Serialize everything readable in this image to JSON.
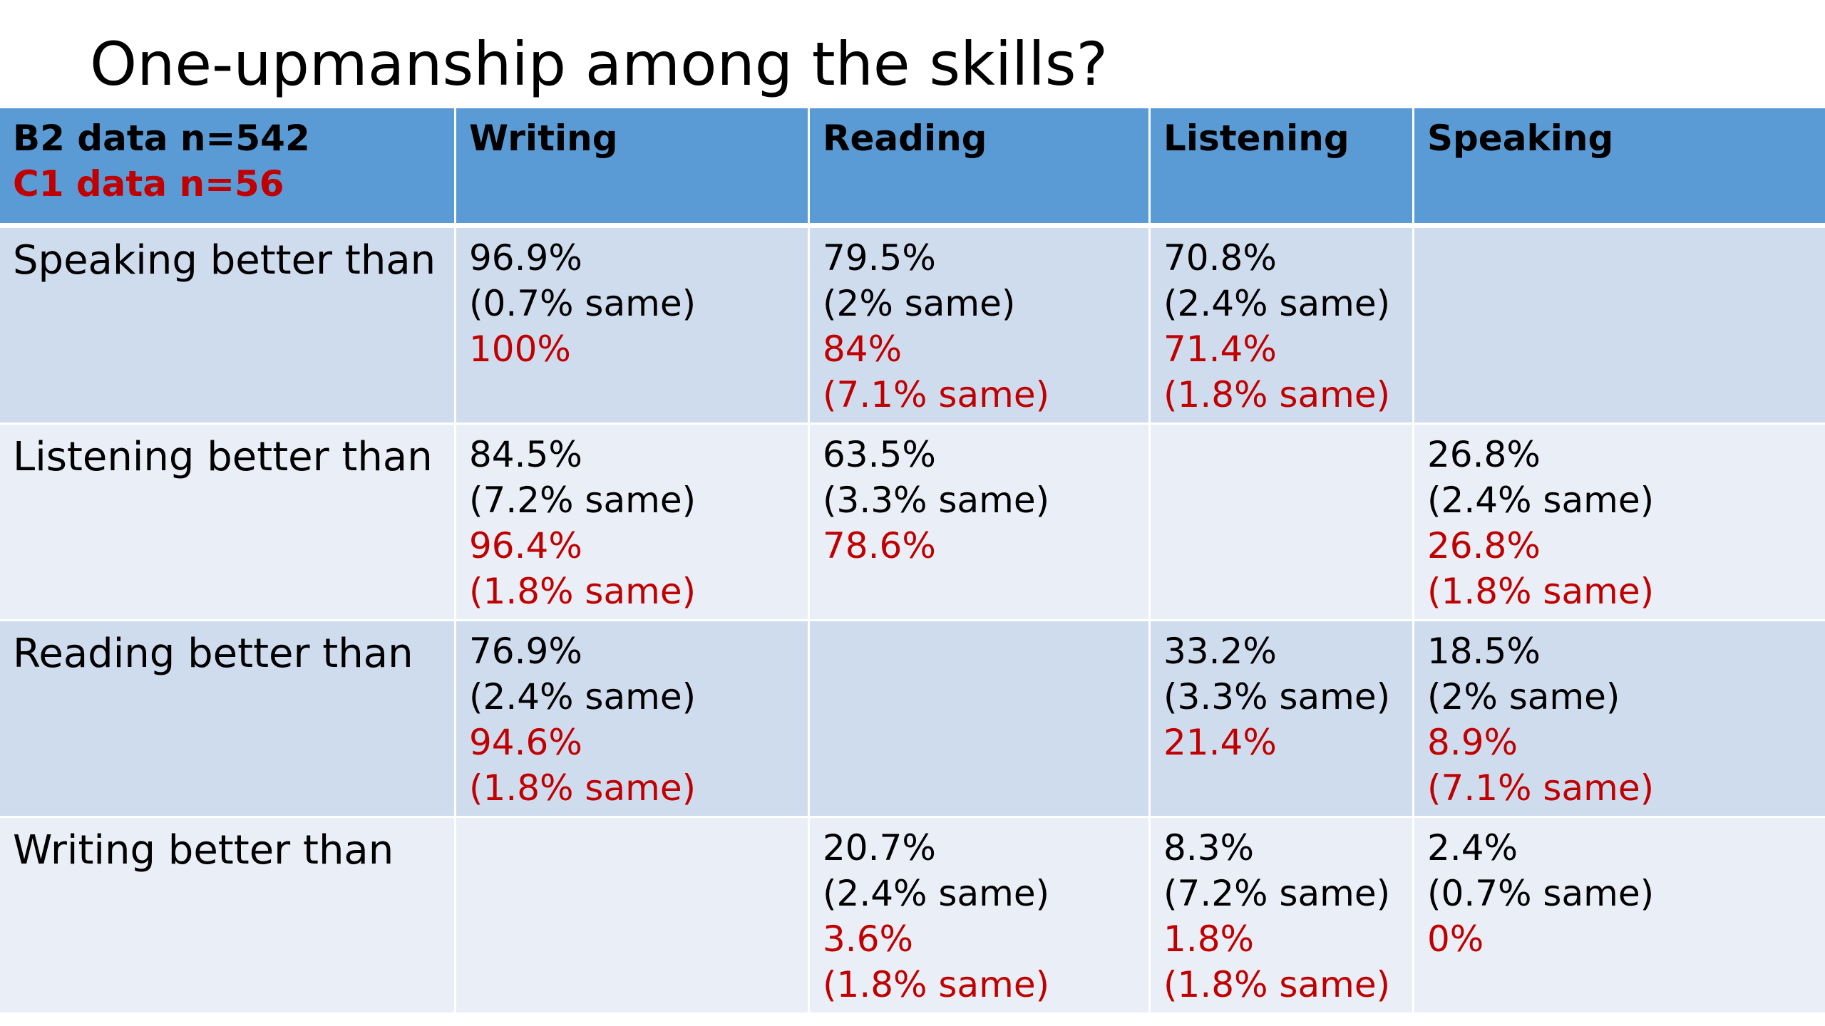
{
  "slide": {
    "title": "One-upmanship among the skills?"
  },
  "colors": {
    "header_bg": "#5b9bd5",
    "row_dark": "#cfdcee",
    "row_light": "#e9eef7",
    "c1_text": "#c00000",
    "b2_text": "#000000"
  },
  "table": {
    "corner": {
      "b2": "B2 data n=542",
      "c1": "C1 data n=56"
    },
    "columns": [
      "Writing",
      "Reading",
      "Listening",
      "Speaking"
    ],
    "rows": [
      {
        "label": "Speaking better than",
        "cells": [
          {
            "b2": "96.9%",
            "b2_same": "(0.7% same)",
            "c1": "100%",
            "c1_same": ""
          },
          {
            "b2": "79.5%",
            "b2_same": "(2% same)",
            "c1": "84%",
            "c1_same": "(7.1% same)"
          },
          {
            "b2": "70.8%",
            "b2_same": "(2.4% same)",
            "c1": "71.4%",
            "c1_same": "(1.8% same)"
          },
          {
            "b2": "",
            "b2_same": "",
            "c1": "",
            "c1_same": ""
          }
        ]
      },
      {
        "label": "Listening better than",
        "cells": [
          {
            "b2": "84.5%",
            "b2_same": "(7.2% same)",
            "c1": "96.4%",
            "c1_same": "(1.8% same)"
          },
          {
            "b2": "63.5%",
            "b2_same": "(3.3% same)",
            "c1": "78.6%",
            "c1_same": ""
          },
          {
            "b2": "",
            "b2_same": "",
            "c1": "",
            "c1_same": ""
          },
          {
            "b2": "26.8%",
            "b2_same": "(2.4% same)",
            "c1": "26.8%",
            "c1_same": "(1.8% same)"
          }
        ]
      },
      {
        "label": "Reading better than",
        "cells": [
          {
            "b2": "76.9%",
            "b2_same": "(2.4% same)",
            "c1": "94.6%",
            "c1_same": "(1.8% same)"
          },
          {
            "b2": "",
            "b2_same": "",
            "c1": "",
            "c1_same": ""
          },
          {
            "b2": "33.2%",
            "b2_same": "(3.3% same)",
            "c1": "21.4%",
            "c1_same": ""
          },
          {
            "b2": "18.5%",
            "b2_same": "(2% same)",
            "c1": "8.9%",
            "c1_same": "(7.1% same)"
          }
        ]
      },
      {
        "label": "Writing better than",
        "cells": [
          {
            "b2": "",
            "b2_same": "",
            "c1": "",
            "c1_same": ""
          },
          {
            "b2": "20.7%",
            "b2_same": "(2.4% same)",
            "c1": "3.6%",
            "c1_same": "(1.8% same)"
          },
          {
            "b2": "8.3%",
            "b2_same": "(7.2% same)",
            "c1": "1.8%",
            "c1_same": "(1.8% same)"
          },
          {
            "b2": "2.4%",
            "b2_same": "(0.7% same)",
            "c1": "0%",
            "c1_same": ""
          }
        ]
      }
    ]
  }
}
